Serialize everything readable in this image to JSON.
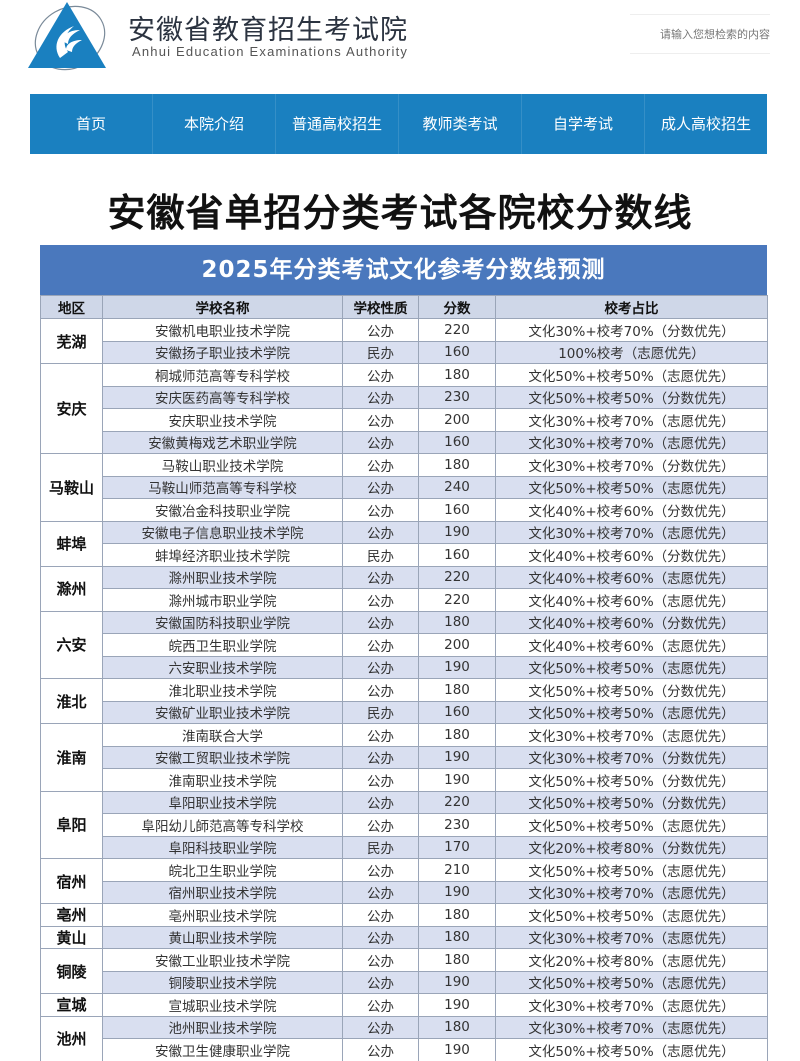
{
  "header": {
    "title": "安徽省教育招生考试院",
    "subtitle": "Anhui Education Examinations Authority",
    "search_placeholder": "请输入您想检索的内容",
    "logo_icon": "triangle-flame-logo",
    "colors": {
      "brand": "#1a80c0",
      "nav_bg": "#1a80c0"
    }
  },
  "nav": {
    "items": [
      {
        "label": "首页"
      },
      {
        "label": "本院介绍"
      },
      {
        "label": "普通高校招生"
      },
      {
        "label": "教师类考试"
      },
      {
        "label": "自学考试"
      },
      {
        "label": "成人高校招生"
      }
    ]
  },
  "main_title": "安徽省单招分类考试各院校分数线",
  "table": {
    "caption": "2025年分类考试文化参考分数线预测",
    "colors": {
      "caption_bg": "#4a78bd",
      "header_bg": "#cfd7e8",
      "alt_row_bg": "#d9dff0",
      "border": "#9aa5b8"
    },
    "columns": [
      "地区",
      "学校名称",
      "学校性质",
      "分数",
      "校考占比"
    ],
    "groups": [
      {
        "region": "芜湖",
        "rows": [
          {
            "school": "安徽机电职业技术学院",
            "type": "公办",
            "score": "220",
            "ratio": "文化30%+校考70%（分数优先）"
          },
          {
            "school": "安徽扬子职业技术学院",
            "type": "民办",
            "score": "160",
            "ratio": "100%校考（志愿优先）"
          }
        ]
      },
      {
        "region": "安庆",
        "rows": [
          {
            "school": "桐城师范高等专科学校",
            "type": "公办",
            "score": "180",
            "ratio": "文化50%+校考50%（志愿优先）"
          },
          {
            "school": "安庆医药高等专科学校",
            "type": "公办",
            "score": "230",
            "ratio": "文化50%+校考50%（分数优先）"
          },
          {
            "school": "安庆职业技术学院",
            "type": "公办",
            "score": "200",
            "ratio": "文化30%+校考70%（志愿优先）"
          },
          {
            "school": "安徽黄梅戏艺术职业学院",
            "type": "公办",
            "score": "160",
            "ratio": "文化30%+校考70%（志愿优先）"
          }
        ]
      },
      {
        "region": "马鞍山",
        "rows": [
          {
            "school": "马鞍山职业技术学院",
            "type": "公办",
            "score": "180",
            "ratio": "文化30%+校考70%（分数优先）"
          },
          {
            "school": "马鞍山师范高等专科学校",
            "type": "公办",
            "score": "240",
            "ratio": "文化50%+校考50%（志愿优先）"
          },
          {
            "school": "安徽冶金科技职业学院",
            "type": "公办",
            "score": "160",
            "ratio": "文化40%+校考60%（分数优先）"
          }
        ]
      },
      {
        "region": "蚌埠",
        "rows": [
          {
            "school": "安徽电子信息职业技术学院",
            "type": "公办",
            "score": "190",
            "ratio": "文化30%+校考70%（志愿优先）"
          },
          {
            "school": "蚌埠经济职业技术学院",
            "type": "民办",
            "score": "160",
            "ratio": "文化40%+校考60%（分数优先）"
          }
        ]
      },
      {
        "region": "滁州",
        "rows": [
          {
            "school": "滁州职业技术学院",
            "type": "公办",
            "score": "220",
            "ratio": "文化40%+校考60%（志愿优先）"
          },
          {
            "school": "滁州城市职业学院",
            "type": "公办",
            "score": "220",
            "ratio": "文化40%+校考60%（志愿优先）"
          }
        ]
      },
      {
        "region": "六安",
        "rows": [
          {
            "school": "安徽国防科技职业学院",
            "type": "公办",
            "score": "180",
            "ratio": "文化40%+校考60%（分数优先）"
          },
          {
            "school": "皖西卫生职业学院",
            "type": "公办",
            "score": "200",
            "ratio": "文化40%+校考60%（志愿优先）"
          },
          {
            "school": "六安职业技术学院",
            "type": "公办",
            "score": "190",
            "ratio": "文化50%+校考50%（志愿优先）"
          }
        ]
      },
      {
        "region": "淮北",
        "rows": [
          {
            "school": "淮北职业技术学院",
            "type": "公办",
            "score": "180",
            "ratio": "文化50%+校考50%（分数优先）"
          },
          {
            "school": "安徽矿业职业技术学院",
            "type": "民办",
            "score": "160",
            "ratio": "文化50%+校考50%（志愿优先）"
          }
        ]
      },
      {
        "region": "淮南",
        "rows": [
          {
            "school": "淮南联合大学",
            "type": "公办",
            "score": "180",
            "ratio": "文化30%+校考70%（志愿优先）"
          },
          {
            "school": "安徽工贸职业技术学院",
            "type": "公办",
            "score": "190",
            "ratio": "文化30%+校考70%（分数优先）"
          },
          {
            "school": "淮南职业技术学院",
            "type": "公办",
            "score": "190",
            "ratio": "文化50%+校考50%（分数优先）"
          }
        ]
      },
      {
        "region": "阜阳",
        "rows": [
          {
            "school": "阜阳职业技术学院",
            "type": "公办",
            "score": "220",
            "ratio": "文化50%+校考50%（分数优先）"
          },
          {
            "school": "阜阳幼儿師范高等专科学校",
            "type": "公办",
            "score": "230",
            "ratio": "文化50%+校考50%（志愿优先）"
          },
          {
            "school": "阜阳科技职业学院",
            "type": "民办",
            "score": "170",
            "ratio": "文化20%+校考80%（分数优先）"
          }
        ]
      },
      {
        "region": "宿州",
        "rows": [
          {
            "school": "皖北卫生职业学院",
            "type": "公办",
            "score": "210",
            "ratio": "文化50%+校考50%（志愿优先）"
          },
          {
            "school": "宿州职业技术学院",
            "type": "公办",
            "score": "190",
            "ratio": "文化30%+校考70%（志愿优先）"
          }
        ]
      },
      {
        "region": "亳州",
        "rows": [
          {
            "school": "亳州职业技术学院",
            "type": "公办",
            "score": "180",
            "ratio": "文化50%+校考50%（志愿优先）"
          }
        ]
      },
      {
        "region": "黄山",
        "rows": [
          {
            "school": "黄山职业技术学院",
            "type": "公办",
            "score": "180",
            "ratio": "文化30%+校考70%（志愿优先）"
          }
        ]
      },
      {
        "region": "铜陵",
        "rows": [
          {
            "school": "安徽工业职业技术学院",
            "type": "公办",
            "score": "180",
            "ratio": "文化20%+校考80%（志愿优先）"
          },
          {
            "school": "铜陵职业技术学院",
            "type": "公办",
            "score": "190",
            "ratio": "文化50%+校考50%（志愿优先）"
          }
        ]
      },
      {
        "region": "宣城",
        "rows": [
          {
            "school": "宣城职业技术学院",
            "type": "公办",
            "score": "190",
            "ratio": "文化30%+校考70%（志愿优先）"
          }
        ]
      },
      {
        "region": "池州",
        "rows": [
          {
            "school": "池州职业技术学院",
            "type": "公办",
            "score": "180",
            "ratio": "文化30%+校考70%（志愿优先）"
          },
          {
            "school": "安徽卫生健康职业学院",
            "type": "公办",
            "score": "190",
            "ratio": "文化50%+校考50%（志愿优先）"
          }
        ]
      }
    ]
  }
}
